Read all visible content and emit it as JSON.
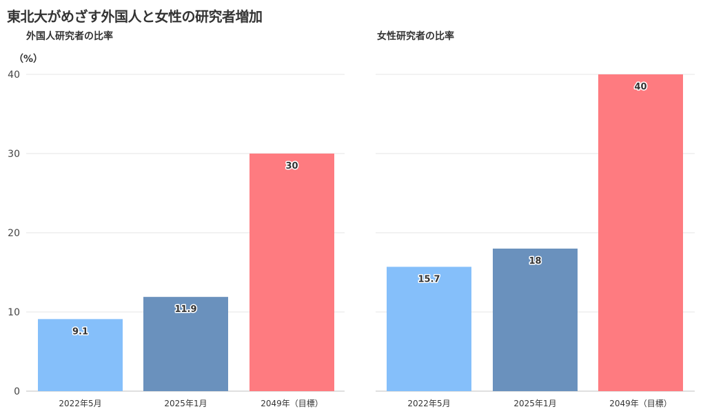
{
  "title": "東北大がめざす外国人と女性の研究者増加",
  "unit_label": "（%）",
  "colors": {
    "bar1": "#85bffa",
    "bar2": "#6a91bd",
    "bar3": "#fe7b80",
    "grid": "#e6e6e6",
    "axis": "#bfbfbf"
  },
  "chart_data": [
    {
      "type": "bar",
      "title": "外国人研究者の比率",
      "categories": [
        "2022年5月",
        "2025年1月",
        "2049年（目標）"
      ],
      "values": [
        9.1,
        11.9,
        30
      ],
      "value_labels": [
        "9.1",
        "11.9",
        "30"
      ],
      "ylim": [
        0,
        40
      ],
      "yticks": [
        0,
        10,
        20,
        30,
        40
      ],
      "ylabel": "（%）",
      "grid": true
    },
    {
      "type": "bar",
      "title": "女性研究者の比率",
      "categories": [
        "2022年5月",
        "2025年1月",
        "2049年（目標）"
      ],
      "values": [
        15.7,
        18,
        40
      ],
      "value_labels": [
        "15.7",
        "18",
        "40"
      ],
      "ylim": [
        0,
        40
      ],
      "yticks": [
        0,
        10,
        20,
        30,
        40
      ],
      "grid": true
    }
  ]
}
